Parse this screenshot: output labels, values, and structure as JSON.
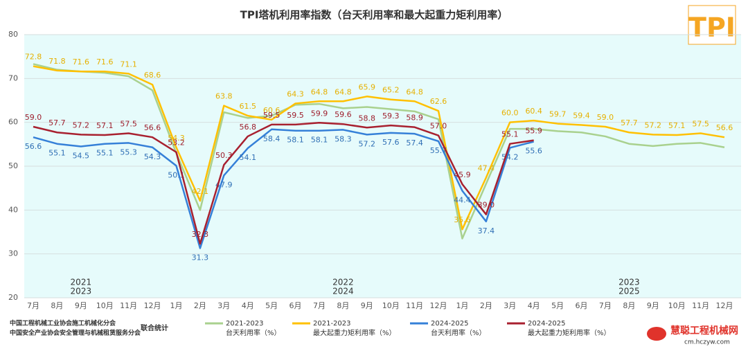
{
  "chart_data": {
    "type": "line",
    "title": "TPI塔机利用率指数（台天利用率和最大起重力矩利用率）",
    "logo": "TPI",
    "categories": [
      "7月",
      "8月",
      "9月",
      "10月",
      "11月",
      "12月",
      "1月",
      "2月",
      "3月",
      "4月",
      "5月",
      "6月",
      "7月",
      "8月",
      "9月",
      "10月",
      "11月",
      "12月",
      "1月",
      "2月",
      "3月",
      "4月",
      "5月",
      "6月",
      "7月",
      "8月",
      "9月",
      "10月",
      "11月",
      "12月"
    ],
    "ylim": [
      20,
      80
    ],
    "yticks": [
      20,
      30,
      40,
      50,
      60,
      70,
      80
    ],
    "grid": true,
    "period_labels": [
      {
        "x": 2,
        "text": [
          "2021",
          "2023"
        ]
      },
      {
        "x": 13,
        "text": [
          "2022",
          "2024"
        ]
      },
      {
        "x": 25,
        "text": [
          "2023",
          "2025"
        ]
      }
    ],
    "series": [
      {
        "name": [
          "2021-2023",
          "台天利用率（%）"
        ],
        "color": "#a9d18e",
        "labels": false,
        "values": [
          73.3,
          72.0,
          71.6,
          71.3,
          70.5,
          67.3,
          53.0,
          40.0,
          62.3,
          61.0,
          61.5,
          64.0,
          64.2,
          63.2,
          63.5,
          63.0,
          62.5,
          60.7,
          33.5,
          46.0,
          58.5,
          58.5,
          58.0,
          57.7,
          56.8,
          55.1,
          54.6,
          55.1,
          55.3,
          54.3
        ]
      },
      {
        "name": [
          "2021-2023",
          "最大起重力矩利用率（%）"
        ],
        "color": "#ffc000",
        "label_color": "#e6b000",
        "labels": "above",
        "values": [
          72.8,
          71.8,
          71.6,
          71.6,
          71.1,
          68.6,
          54.3,
          42.1,
          63.8,
          61.5,
          60.6,
          64.3,
          64.8,
          64.8,
          65.9,
          65.2,
          64.8,
          62.6,
          35.6,
          47.4,
          60.0,
          60.4,
          59.7,
          59.4,
          59.0,
          57.7,
          57.2,
          57.1,
          57.5,
          56.6
        ],
        "value_labels": [
          "72.8",
          "71.8",
          "71.6",
          "71.6",
          "71.1",
          "68.6",
          "54.3",
          "42.1",
          "63.8",
          "61.5",
          "60.6",
          "64.3",
          "64.8",
          "64.8",
          "65.9",
          "65.2",
          "64.8",
          "62.6",
          "35.6",
          "47.4",
          "60.0",
          "60.4",
          "59.7",
          "59.4",
          "59.0",
          "57.7",
          "57.2",
          "57.1",
          "57.5",
          "56.6"
        ]
      },
      {
        "name": [
          "2024-2025",
          "台天利用率（%）"
        ],
        "color": "#3580d8",
        "label_color": "#2f6fb5",
        "labels": "below",
        "values": [
          56.6,
          55.1,
          54.5,
          55.1,
          55.3,
          54.3,
          50.1,
          31.3,
          47.9,
          54.1,
          58.4,
          58.1,
          58.1,
          58.3,
          57.2,
          57.6,
          57.4,
          55.7,
          44.4,
          37.4,
          54.2,
          55.6,
          null,
          null,
          null,
          null,
          null,
          null,
          null,
          null
        ]
      },
      {
        "name": [
          "2024-2025",
          "最大起重力矩利用率（%）"
        ],
        "color": "#a8202f",
        "label_color": "#9e1e2c",
        "labels": "above",
        "values": [
          59.0,
          57.7,
          57.2,
          57.1,
          57.5,
          56.6,
          53.2,
          32.3,
          50.3,
          56.8,
          59.5,
          59.5,
          59.9,
          59.6,
          58.8,
          59.3,
          58.9,
          57.0,
          45.9,
          39.0,
          55.1,
          55.9,
          null,
          null,
          null,
          null,
          null,
          null,
          null,
          null
        ],
        "value_labels": [
          "59.0",
          "57.7",
          "57.2",
          "57.1",
          "57.5",
          "56.6",
          "53.2",
          "32.3",
          "50.3",
          "56.8",
          "59.5",
          "59.5",
          "59.9",
          "59.6",
          "58.8",
          "59.3",
          "58.9",
          "57.0",
          "45.9",
          "39.0",
          "55.1",
          "55.9",
          null,
          null,
          null,
          null,
          null,
          null,
          null,
          null
        ]
      }
    ],
    "footer": [
      "中国工程机械工业协会施工机械化分会",
      "中国安全产业协会安全管理与机械租赁服务分会"
    ],
    "footer_note": "联合统计",
    "watermark": [
      "慧聪工程机械网",
      "cm.hczyw.com"
    ]
  }
}
